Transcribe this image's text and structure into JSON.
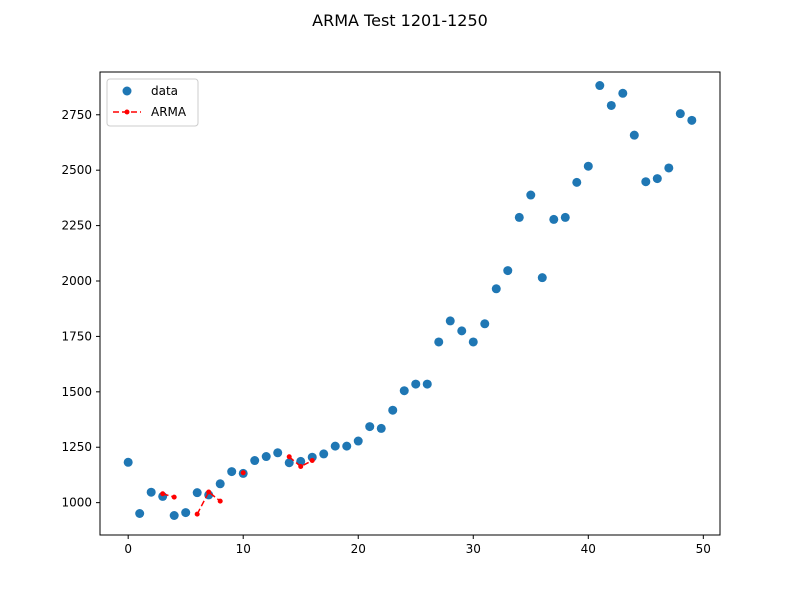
{
  "chart_data": {
    "type": "scatter",
    "title": "ARMA Test 1201-1250",
    "xlabel": "",
    "ylabel": "",
    "xlim": [
      -2.45,
      51.45
    ],
    "ylim": [
      854,
      2943
    ],
    "xticks": [
      0,
      10,
      20,
      30,
      40,
      50
    ],
    "yticks": [
      1000,
      1250,
      1500,
      1750,
      2000,
      2250,
      2500,
      2750
    ],
    "grid": false,
    "legend_position": "top-left",
    "series": [
      {
        "name": "data",
        "style": "markers",
        "color": "#1f77b4",
        "x": [
          0,
          1,
          2,
          3,
          4,
          5,
          6,
          7,
          8,
          9,
          10,
          11,
          12,
          13,
          14,
          15,
          16,
          17,
          18,
          19,
          20,
          21,
          22,
          23,
          24,
          25,
          26,
          27,
          28,
          29,
          30,
          31,
          32,
          33,
          34,
          35,
          36,
          37,
          38,
          39,
          40,
          41,
          42,
          43,
          44,
          45,
          46,
          47,
          48,
          49
        ],
        "y": [
          1182,
          951,
          1047,
          1028,
          942,
          955,
          1045,
          1035,
          1085,
          1140,
          1132,
          1190,
          1208,
          1225,
          1180,
          1186,
          1205,
          1220,
          1255,
          1255,
          1278,
          1343,
          1335,
          1417,
          1505,
          1535,
          1535,
          1725,
          1820,
          1775,
          1725,
          1807,
          1965,
          2047,
          2287,
          2388,
          2015,
          2278,
          2287,
          2445,
          2518,
          2882,
          2792,
          2847,
          2658,
          2448,
          2462,
          2510,
          2755,
          2725
        ]
      },
      {
        "name": "ARMA",
        "style": "dashed-line-markers",
        "color": "#ff0000",
        "segments": [
          {
            "x": [
              3,
              4
            ],
            "y": [
              1040,
              1025
            ]
          },
          {
            "x": [
              6,
              7,
              8
            ],
            "y": [
              948,
              1048,
              1007
            ]
          },
          {
            "x": [
              10
            ],
            "y": [
              1135
            ]
          },
          {
            "x": [
              14,
              15,
              16
            ],
            "y": [
              1207,
              1163,
              1190
            ]
          }
        ]
      }
    ]
  }
}
